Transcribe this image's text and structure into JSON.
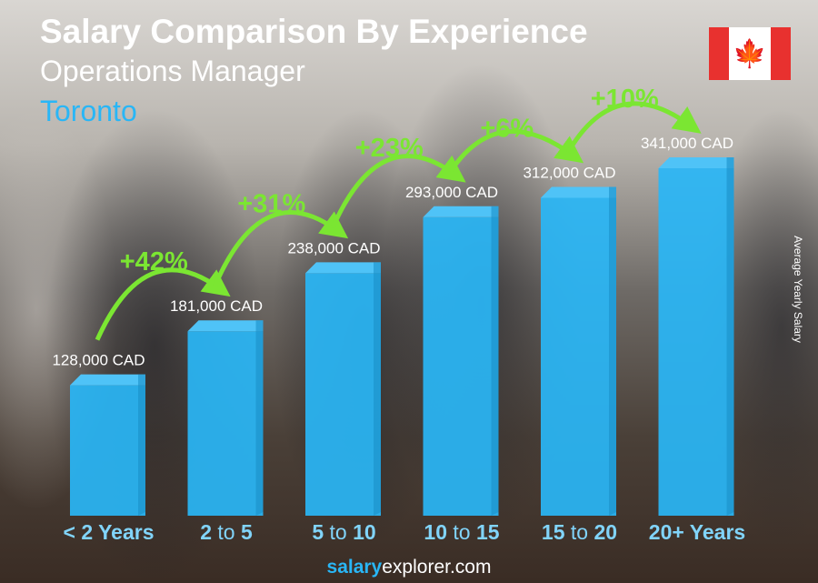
{
  "header": {
    "title": "Salary Comparison By Experience",
    "subtitle": "Operations Manager",
    "location": "Toronto",
    "flag_icon": "canada-flag-icon"
  },
  "y_axis_label": "Average Yearly Salary",
  "footer": {
    "brand_bold": "salary",
    "brand_rest": "explorer.com"
  },
  "colors": {
    "bar": "#29b6f6",
    "bar_top": "#4fc3f7",
    "bar_side": "#1a8fc8",
    "increase": "#7be632",
    "category": "#81d4fa"
  },
  "chart_data": {
    "type": "bar",
    "categories": [
      [
        "< 2 Years"
      ],
      [
        "2",
        " to ",
        "5"
      ],
      [
        "5",
        " to ",
        "10"
      ],
      [
        "10",
        " to ",
        "15"
      ],
      [
        "15",
        " to ",
        "20"
      ],
      [
        "20+ Years"
      ]
    ],
    "values": [
      128000,
      181000,
      238000,
      293000,
      312000,
      341000
    ],
    "value_labels": [
      "128,000 CAD",
      "181,000 CAD",
      "238,000 CAD",
      "293,000 CAD",
      "312,000 CAD",
      "341,000 CAD"
    ],
    "increases": [
      "+42%",
      "+31%",
      "+23%",
      "+6%",
      "+10%"
    ],
    "unit": "CAD",
    "ylabel": "Average Yearly Salary",
    "grid": false
  }
}
